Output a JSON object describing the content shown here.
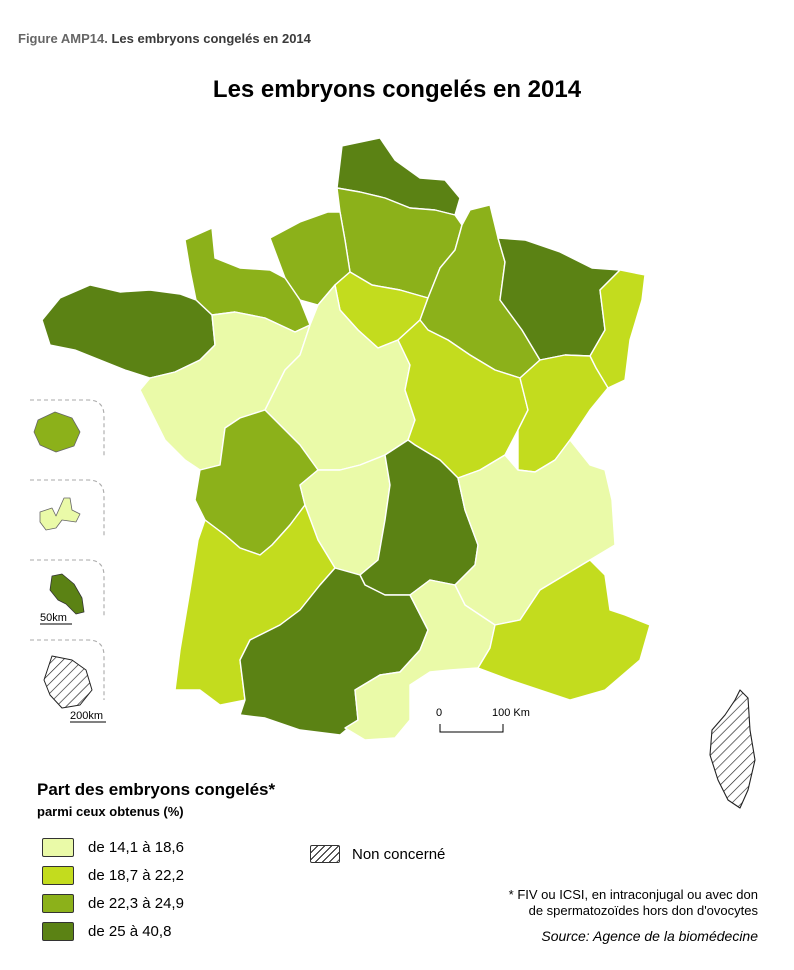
{
  "figure": {
    "label": "Figure AMP14.",
    "caption": "Les embryons congelés en 2014"
  },
  "title": "Les embryons congelés en 2014",
  "legend": {
    "title": "Part des embryons congelés*",
    "subtitle": "parmi ceux obtenus (%)",
    "classes": [
      {
        "label": "de 14,1 à 18,6",
        "color": "#eafaa8"
      },
      {
        "label": "de 18,7 à 22,2",
        "color": "#c3dc1e"
      },
      {
        "label": "de 22,3 à 24,9",
        "color": "#8cb11a"
      },
      {
        "label": "de 25 à 40,8",
        "color": "#5b8214"
      }
    ],
    "not_concerned": "Non concerné"
  },
  "scale": {
    "start": "0",
    "end": "100 Km"
  },
  "insets": {
    "scale_small": "50km",
    "scale_large": "200km"
  },
  "footnote": {
    "line1": "* FIV ou ICSI, en intraconjugal ou avec don",
    "line2": "de spermatozoïdes hors don d'ovocytes"
  },
  "source": "Source: Agence de la biomédecine",
  "map_data": {
    "regions": [
      {
        "id": "nord-pas-de-calais",
        "class": 3
      },
      {
        "id": "picardie",
        "class": 2
      },
      {
        "id": "haute-normandie",
        "class": 2
      },
      {
        "id": "basse-normandie",
        "class": 2
      },
      {
        "id": "bretagne",
        "class": 3
      },
      {
        "id": "ile-de-france",
        "class": 1
      },
      {
        "id": "champagne-ardenne",
        "class": 2
      },
      {
        "id": "lorraine",
        "class": 3
      },
      {
        "id": "alsace",
        "class": 1
      },
      {
        "id": "pays-de-la-loire",
        "class": 0
      },
      {
        "id": "centre",
        "class": 0
      },
      {
        "id": "bourgogne",
        "class": 1
      },
      {
        "id": "franche-comte",
        "class": 1
      },
      {
        "id": "poitou-charentes",
        "class": 2
      },
      {
        "id": "limousin",
        "class": 0
      },
      {
        "id": "auvergne",
        "class": 3
      },
      {
        "id": "rhone-alpes",
        "class": 0
      },
      {
        "id": "aquitaine",
        "class": 1
      },
      {
        "id": "midi-pyrenees",
        "class": 3
      },
      {
        "id": "languedoc-roussillon",
        "class": 0
      },
      {
        "id": "paca",
        "class": 1
      },
      {
        "id": "corse",
        "class": "nc"
      },
      {
        "id": "la-reunion",
        "class": 2
      },
      {
        "id": "guadeloupe",
        "class": 0
      },
      {
        "id": "martinique",
        "class": 3
      },
      {
        "id": "guyane",
        "class": "nc"
      }
    ]
  }
}
